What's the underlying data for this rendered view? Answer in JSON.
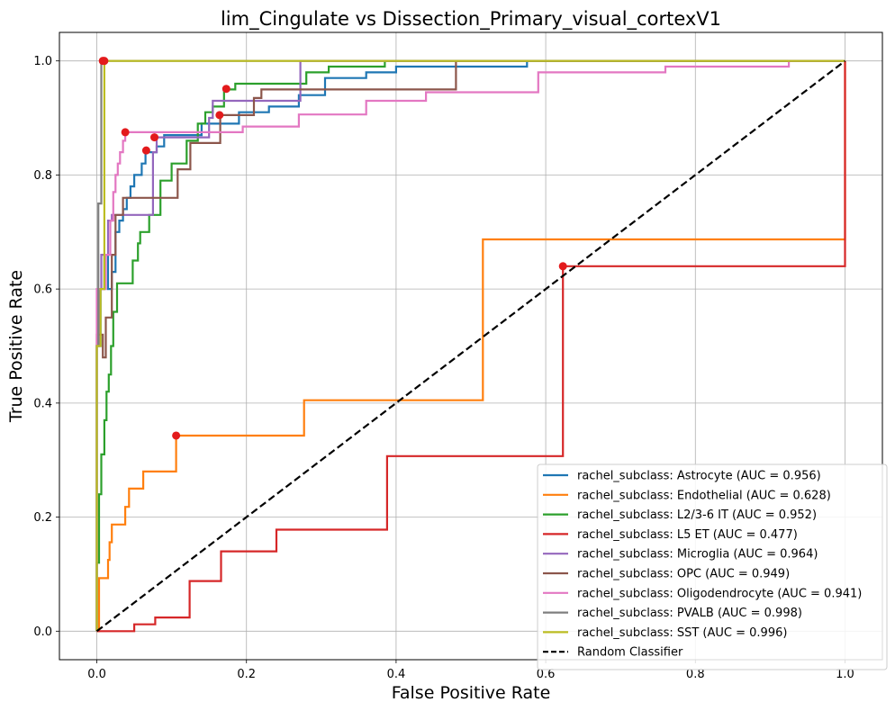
{
  "chart_data": {
    "type": "line",
    "title": "lim_Cingulate vs Dissection_Primary_visual_cortexV1",
    "xlabel": "False Positive Rate",
    "ylabel": "True Positive Rate",
    "xlim": [
      -0.05,
      1.05
    ],
    "ylim": [
      -0.05,
      1.05
    ],
    "xticks": [
      0.0,
      0.2,
      0.4,
      0.6,
      0.8,
      1.0
    ],
    "yticks": [
      0.0,
      0.2,
      0.4,
      0.6,
      0.8,
      1.0
    ],
    "xtick_labels": [
      "0.0",
      "0.2",
      "0.4",
      "0.6",
      "0.8",
      "1.0"
    ],
    "ytick_labels": [
      "0.0",
      "0.2",
      "0.4",
      "0.6",
      "0.8",
      "1.0"
    ],
    "grid": true,
    "legend_position": "lower right",
    "series": [
      {
        "name": "rachel_subclass: Astrocyte (AUC = 0.956)",
        "color": "#1f77b4",
        "points": [
          [
            0,
            0
          ],
          [
            0,
            0.5
          ],
          [
            0.005,
            0.5
          ],
          [
            0.005,
            0.6
          ],
          [
            0.01,
            0.6
          ],
          [
            0.01,
            0.66
          ],
          [
            0.015,
            0.66
          ],
          [
            0.015,
            0.6
          ],
          [
            0.02,
            0.6
          ],
          [
            0.02,
            0.63
          ],
          [
            0.025,
            0.63
          ],
          [
            0.025,
            0.7
          ],
          [
            0.03,
            0.7
          ],
          [
            0.03,
            0.72
          ],
          [
            0.035,
            0.72
          ],
          [
            0.035,
            0.74
          ],
          [
            0.04,
            0.74
          ],
          [
            0.04,
            0.76
          ],
          [
            0.045,
            0.76
          ],
          [
            0.045,
            0.78
          ],
          [
            0.05,
            0.78
          ],
          [
            0.05,
            0.8
          ],
          [
            0.06,
            0.8
          ],
          [
            0.06,
            0.82
          ],
          [
            0.065,
            0.82
          ],
          [
            0.065,
            0.84
          ],
          [
            0.08,
            0.84
          ],
          [
            0.08,
            0.85
          ],
          [
            0.09,
            0.85
          ],
          [
            0.09,
            0.87
          ],
          [
            0.14,
            0.87
          ],
          [
            0.14,
            0.89
          ],
          [
            0.19,
            0.89
          ],
          [
            0.19,
            0.91
          ],
          [
            0.23,
            0.91
          ],
          [
            0.23,
            0.92
          ],
          [
            0.27,
            0.92
          ],
          [
            0.27,
            0.94
          ],
          [
            0.305,
            0.94
          ],
          [
            0.305,
            0.97
          ],
          [
            0.36,
            0.97
          ],
          [
            0.36,
            0.98
          ],
          [
            0.4,
            0.98
          ],
          [
            0.4,
            0.99
          ],
          [
            0.575,
            0.99
          ],
          [
            0.575,
            1.0
          ],
          [
            1.0,
            1.0
          ]
        ],
        "optimal": [
          0.066,
          0.843
        ]
      },
      {
        "name": "rachel_subclass: Endothelial (AUC = 0.628)",
        "color": "#ff7f0e",
        "points": [
          [
            0,
            0
          ],
          [
            0.003,
            0.0
          ],
          [
            0.003,
            0.093
          ],
          [
            0.015,
            0.093
          ],
          [
            0.015,
            0.125
          ],
          [
            0.017,
            0.125
          ],
          [
            0.017,
            0.156
          ],
          [
            0.02,
            0.156
          ],
          [
            0.02,
            0.187
          ],
          [
            0.038,
            0.187
          ],
          [
            0.038,
            0.218
          ],
          [
            0.043,
            0.218
          ],
          [
            0.043,
            0.25
          ],
          [
            0.062,
            0.25
          ],
          [
            0.062,
            0.28
          ],
          [
            0.106,
            0.28
          ],
          [
            0.106,
            0.343
          ],
          [
            0.277,
            0.343
          ],
          [
            0.277,
            0.405
          ],
          [
            0.516,
            0.405
          ],
          [
            0.516,
            0.687
          ],
          [
            1.0,
            0.687
          ],
          [
            1.0,
            1.0
          ]
        ],
        "optimal": [
          0.106,
          0.343
        ]
      },
      {
        "name": "rachel_subclass: L2/3-6 IT (AUC = 0.952)",
        "color": "#2ca02c",
        "points": [
          [
            0,
            0
          ],
          [
            0,
            0.12
          ],
          [
            0.003,
            0.12
          ],
          [
            0.003,
            0.24
          ],
          [
            0.006,
            0.24
          ],
          [
            0.006,
            0.31
          ],
          [
            0.01,
            0.31
          ],
          [
            0.01,
            0.37
          ],
          [
            0.013,
            0.37
          ],
          [
            0.013,
            0.42
          ],
          [
            0.016,
            0.42
          ],
          [
            0.016,
            0.45
          ],
          [
            0.019,
            0.45
          ],
          [
            0.019,
            0.5
          ],
          [
            0.022,
            0.5
          ],
          [
            0.022,
            0.56
          ],
          [
            0.027,
            0.56
          ],
          [
            0.027,
            0.61
          ],
          [
            0.048,
            0.61
          ],
          [
            0.048,
            0.65
          ],
          [
            0.055,
            0.65
          ],
          [
            0.055,
            0.68
          ],
          [
            0.058,
            0.68
          ],
          [
            0.058,
            0.7
          ],
          [
            0.07,
            0.7
          ],
          [
            0.07,
            0.73
          ],
          [
            0.085,
            0.73
          ],
          [
            0.085,
            0.79
          ],
          [
            0.1,
            0.79
          ],
          [
            0.1,
            0.82
          ],
          [
            0.12,
            0.82
          ],
          [
            0.12,
            0.86
          ],
          [
            0.135,
            0.86
          ],
          [
            0.135,
            0.89
          ],
          [
            0.145,
            0.89
          ],
          [
            0.145,
            0.91
          ],
          [
            0.155,
            0.91
          ],
          [
            0.155,
            0.92
          ],
          [
            0.17,
            0.92
          ],
          [
            0.17,
            0.95
          ],
          [
            0.185,
            0.95
          ],
          [
            0.185,
            0.96
          ],
          [
            0.28,
            0.96
          ],
          [
            0.28,
            0.98
          ],
          [
            0.31,
            0.98
          ],
          [
            0.31,
            0.99
          ],
          [
            0.385,
            0.99
          ],
          [
            0.385,
            1.0
          ],
          [
            1.0,
            1.0
          ]
        ],
        "optimal": [
          0.173,
          0.951
        ]
      },
      {
        "name": "rachel_subclass: L5 ET (AUC = 0.477)",
        "color": "#d62728",
        "points": [
          [
            0,
            0
          ],
          [
            0.05,
            0.0
          ],
          [
            0.05,
            0.012
          ],
          [
            0.078,
            0.012
          ],
          [
            0.078,
            0.024
          ],
          [
            0.124,
            0.024
          ],
          [
            0.124,
            0.088
          ],
          [
            0.166,
            0.088
          ],
          [
            0.166,
            0.14
          ],
          [
            0.24,
            0.14
          ],
          [
            0.24,
            0.178
          ],
          [
            0.388,
            0.178
          ],
          [
            0.388,
            0.307
          ],
          [
            0.623,
            0.307
          ],
          [
            0.623,
            0.64
          ],
          [
            1.0,
            0.64
          ],
          [
            1.0,
            1.0
          ]
        ],
        "optimal": [
          0.623,
          0.64
        ]
      },
      {
        "name": "rachel_subclass: Microglia (AUC = 0.964)",
        "color": "#9467bd",
        "points": [
          [
            0,
            0
          ],
          [
            0,
            0.5
          ],
          [
            0.003,
            0.5
          ],
          [
            0.003,
            0.6
          ],
          [
            0.006,
            0.6
          ],
          [
            0.006,
            0.66
          ],
          [
            0.015,
            0.66
          ],
          [
            0.015,
            0.72
          ],
          [
            0.02,
            0.72
          ],
          [
            0.02,
            0.73
          ],
          [
            0.075,
            0.73
          ],
          [
            0.075,
            0.84
          ],
          [
            0.08,
            0.84
          ],
          [
            0.08,
            0.866
          ],
          [
            0.15,
            0.866
          ],
          [
            0.15,
            0.9
          ],
          [
            0.155,
            0.9
          ],
          [
            0.155,
            0.93
          ],
          [
            0.272,
            0.93
          ],
          [
            0.272,
            1.0
          ],
          [
            1.0,
            1.0
          ]
        ],
        "optimal": [
          0.077,
          0.866
        ]
      },
      {
        "name": "rachel_subclass: OPC (AUC = 0.949)",
        "color": "#8c564b",
        "points": [
          [
            0,
            0
          ],
          [
            0,
            0.52
          ],
          [
            0.008,
            0.52
          ],
          [
            0.008,
            0.48
          ],
          [
            0.012,
            0.48
          ],
          [
            0.012,
            0.55
          ],
          [
            0.02,
            0.55
          ],
          [
            0.02,
            0.66
          ],
          [
            0.025,
            0.66
          ],
          [
            0.025,
            0.73
          ],
          [
            0.035,
            0.73
          ],
          [
            0.035,
            0.76
          ],
          [
            0.075,
            0.76
          ],
          [
            0.075,
            0.76
          ],
          [
            0.108,
            0.76
          ],
          [
            0.108,
            0.81
          ],
          [
            0.125,
            0.81
          ],
          [
            0.125,
            0.856
          ],
          [
            0.165,
            0.856
          ],
          [
            0.165,
            0.905
          ],
          [
            0.21,
            0.905
          ],
          [
            0.21,
            0.935
          ],
          [
            0.22,
            0.935
          ],
          [
            0.22,
            0.95
          ],
          [
            0.48,
            0.95
          ],
          [
            0.48,
            1.0
          ],
          [
            1.0,
            1.0
          ]
        ],
        "optimal": [
          0.164,
          0.905
        ]
      },
      {
        "name": "rachel_subclass: Oligodendrocyte (AUC = 0.941)",
        "color": "#e377c2",
        "points": [
          [
            0,
            0
          ],
          [
            0,
            0.6
          ],
          [
            0.012,
            0.6
          ],
          [
            0.012,
            0.66
          ],
          [
            0.018,
            0.66
          ],
          [
            0.018,
            0.72
          ],
          [
            0.022,
            0.72
          ],
          [
            0.022,
            0.77
          ],
          [
            0.025,
            0.77
          ],
          [
            0.025,
            0.8
          ],
          [
            0.028,
            0.8
          ],
          [
            0.028,
            0.82
          ],
          [
            0.031,
            0.82
          ],
          [
            0.031,
            0.84
          ],
          [
            0.035,
            0.84
          ],
          [
            0.035,
            0.86
          ],
          [
            0.038,
            0.86
          ],
          [
            0.038,
            0.875
          ],
          [
            0.16,
            0.875
          ],
          [
            0.16,
            0.875
          ],
          [
            0.195,
            0.875
          ],
          [
            0.195,
            0.885
          ],
          [
            0.27,
            0.885
          ],
          [
            0.27,
            0.906
          ],
          [
            0.36,
            0.906
          ],
          [
            0.36,
            0.93
          ],
          [
            0.44,
            0.93
          ],
          [
            0.44,
            0.945
          ],
          [
            0.59,
            0.945
          ],
          [
            0.59,
            0.98
          ],
          [
            0.76,
            0.98
          ],
          [
            0.76,
            0.99
          ],
          [
            0.925,
            0.99
          ],
          [
            0.925,
            1.0
          ],
          [
            1.0,
            1.0
          ]
        ],
        "optimal": [
          0.038,
          0.875
        ]
      },
      {
        "name": "rachel_subclass: PVALB (AUC = 0.998)",
        "color": "#7f7f7f",
        "points": [
          [
            0,
            0
          ],
          [
            0,
            0.5
          ],
          [
            0.002,
            0.5
          ],
          [
            0.002,
            0.75
          ],
          [
            0.006,
            0.75
          ],
          [
            0.006,
            1.0
          ],
          [
            1.0,
            1.0
          ]
        ],
        "optimal": [
          0.008,
          1.0
        ]
      },
      {
        "name": "rachel_subclass: SST (AUC = 0.996)",
        "color": "#bcbd22",
        "points": [
          [
            0,
            0
          ],
          [
            0,
            0.5
          ],
          [
            0.005,
            0.5
          ],
          [
            0.005,
            0.6
          ],
          [
            0.01,
            0.6
          ],
          [
            0.01,
            1.0
          ],
          [
            1.0,
            1.0
          ]
        ],
        "optimal": [
          0.01,
          1.0
        ]
      }
    ],
    "reference_line": {
      "name": "Random Classifier",
      "color": "#000000",
      "points": [
        [
          0,
          0
        ],
        [
          1,
          1
        ]
      ]
    },
    "optimal_point_color": "#e31a1c"
  }
}
